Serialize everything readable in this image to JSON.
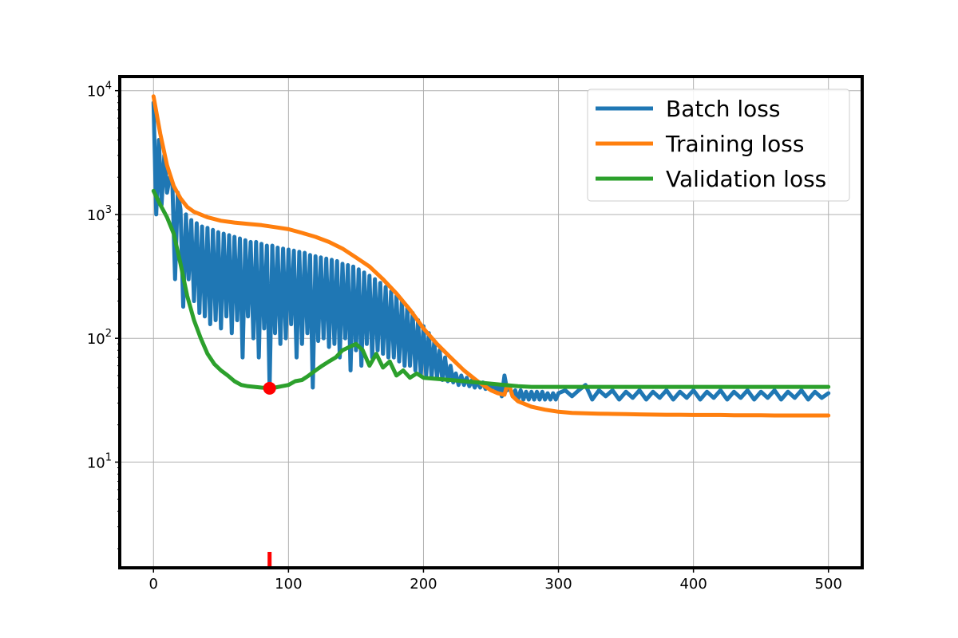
{
  "chart_data": {
    "type": "line",
    "title": "",
    "xlabel": "",
    "ylabel": "",
    "y_scale": "log",
    "xlim": [
      -25,
      525
    ],
    "ylim": [
      1.4,
      13000
    ],
    "grid": true,
    "legend_placement": "top-right",
    "x_ticks": [
      0,
      100,
      200,
      300,
      400,
      500
    ],
    "y_ticks": [
      {
        "value": 10,
        "base": "10",
        "exp": "1"
      },
      {
        "value": 100,
        "base": "10",
        "exp": "2"
      },
      {
        "value": 1000,
        "base": "10",
        "exp": "3"
      },
      {
        "value": 10000,
        "base": "10",
        "exp": "4"
      }
    ],
    "series": [
      {
        "name": "Batch loss",
        "color": "#1f77b4",
        "x": [
          0,
          2,
          4,
          6,
          8,
          10,
          12,
          14,
          16,
          18,
          20,
          22,
          24,
          26,
          28,
          30,
          32,
          34,
          36,
          38,
          40,
          42,
          44,
          46,
          48,
          50,
          52,
          54,
          56,
          58,
          60,
          62,
          64,
          66,
          68,
          70,
          72,
          74,
          76,
          78,
          80,
          82,
          84,
          86,
          88,
          90,
          92,
          94,
          96,
          98,
          100,
          102,
          104,
          106,
          108,
          110,
          112,
          114,
          116,
          118,
          120,
          122,
          124,
          126,
          128,
          130,
          132,
          134,
          136,
          138,
          140,
          142,
          144,
          146,
          148,
          150,
          152,
          154,
          156,
          158,
          160,
          162,
          164,
          166,
          168,
          170,
          172,
          174,
          176,
          178,
          180,
          182,
          184,
          186,
          188,
          190,
          192,
          194,
          196,
          198,
          200,
          202,
          204,
          206,
          208,
          210,
          212,
          214,
          216,
          218,
          220,
          222,
          224,
          226,
          228,
          230,
          232,
          234,
          236,
          238,
          240,
          242,
          244,
          246,
          248,
          250,
          252,
          254,
          256,
          258,
          260,
          262,
          264,
          266,
          268,
          270,
          272,
          274,
          276,
          278,
          280,
          282,
          284,
          286,
          288,
          290,
          292,
          294,
          296,
          298,
          300,
          305,
          310,
          315,
          320,
          325,
          330,
          335,
          340,
          345,
          350,
          355,
          360,
          365,
          370,
          375,
          380,
          385,
          390,
          395,
          400,
          405,
          410,
          415,
          420,
          425,
          430,
          435,
          440,
          445,
          450,
          455,
          460,
          465,
          470,
          475,
          480,
          485,
          490,
          495,
          500
        ],
        "y": [
          8000,
          1000,
          4000,
          1200,
          3000,
          1500,
          2000,
          1800,
          300,
          1500,
          1100,
          180,
          1000,
          300,
          900,
          200,
          850,
          160,
          800,
          150,
          780,
          130,
          750,
          140,
          720,
          120,
          700,
          150,
          680,
          110,
          660,
          140,
          640,
          70,
          620,
          150,
          600,
          100,
          600,
          70,
          580,
          120,
          560,
          40,
          560,
          110,
          540,
          90,
          530,
          100,
          520,
          130,
          510,
          70,
          500,
          90,
          490,
          110,
          470,
          40,
          460,
          95,
          450,
          100,
          440,
          85,
          430,
          90,
          420,
          70,
          400,
          100,
          390,
          55,
          380,
          80,
          360,
          60,
          340,
          90,
          320,
          70,
          300,
          80,
          280,
          75,
          260,
          70,
          240,
          70,
          220,
          65,
          200,
          60,
          180,
          60,
          160,
          55,
          140,
          50,
          125,
          50,
          110,
          48,
          95,
          48,
          80,
          46,
          70,
          45,
          60,
          44,
          52,
          42,
          50,
          42,
          48,
          41,
          46,
          40,
          45,
          40,
          44,
          39,
          43,
          39,
          42,
          38,
          41,
          34,
          50,
          38,
          40,
          34,
          38,
          32,
          38,
          32,
          37,
          32,
          37,
          32,
          37,
          32,
          37,
          32,
          36,
          32,
          36,
          32,
          36,
          38,
          34,
          38,
          42,
          32,
          38,
          34,
          38,
          32,
          37,
          33,
          38,
          32,
          37,
          33,
          38,
          32,
          37,
          33,
          38,
          32,
          37,
          33,
          38,
          32,
          37,
          33,
          38,
          32,
          37,
          33,
          38,
          32,
          37,
          33,
          38,
          32,
          37,
          33,
          36
        ]
      },
      {
        "name": "Training loss",
        "color": "#ff7f0e",
        "x": [
          0,
          5,
          10,
          15,
          20,
          25,
          30,
          40,
          50,
          60,
          70,
          80,
          90,
          100,
          110,
          120,
          130,
          140,
          150,
          160,
          170,
          180,
          190,
          200,
          210,
          220,
          230,
          240,
          250,
          255,
          260,
          262,
          264,
          266,
          270,
          280,
          290,
          300,
          310,
          320,
          330,
          340,
          350,
          360,
          370,
          380,
          390,
          400,
          410,
          420,
          430,
          440,
          450,
          460,
          470,
          480,
          490,
          500
        ],
        "y": [
          9000,
          4500,
          2500,
          1700,
          1350,
          1150,
          1050,
          950,
          890,
          860,
          840,
          820,
          790,
          760,
          710,
          660,
          600,
          530,
          450,
          380,
          300,
          230,
          170,
          120,
          90,
          70,
          55,
          45,
          38,
          36,
          35,
          42,
          40,
          34,
          31,
          28,
          26.5,
          25.5,
          25,
          24.8,
          24.6,
          24.5,
          24.4,
          24.3,
          24.2,
          24.1,
          24.1,
          24.0,
          24.0,
          24.0,
          23.9,
          23.9,
          23.9,
          23.8,
          23.8,
          23.8,
          23.8,
          23.8
        ]
      },
      {
        "name": "Validation loss",
        "color": "#2ca02c",
        "x": [
          0,
          5,
          10,
          15,
          20,
          25,
          30,
          35,
          40,
          45,
          50,
          55,
          60,
          65,
          70,
          75,
          80,
          86,
          90,
          95,
          100,
          105,
          110,
          115,
          120,
          125,
          130,
          135,
          140,
          145,
          150,
          155,
          160,
          165,
          170,
          175,
          180,
          185,
          190,
          195,
          200,
          210,
          220,
          230,
          240,
          250,
          260,
          270,
          280,
          300,
          320,
          340,
          360,
          380,
          400,
          420,
          440,
          460,
          480,
          500
        ],
        "y": [
          1550,
          1200,
          950,
          700,
          400,
          220,
          140,
          100,
          75,
          62,
          55,
          50,
          45,
          42,
          41,
          40.5,
          40,
          39.5,
          40,
          41,
          42,
          45,
          46,
          50,
          55,
          60,
          65,
          70,
          80,
          85,
          90,
          80,
          60,
          75,
          58,
          65,
          50,
          55,
          48,
          52,
          48,
          47,
          46,
          45,
          44,
          43,
          42,
          41,
          40.5,
          40.5,
          40.5,
          40.5,
          40.5,
          40.5,
          40.5,
          40.5,
          40.5,
          40.5,
          40.5,
          40.5
        ]
      }
    ],
    "best_marker": {
      "x": 86,
      "y": 39.5,
      "color": "#ff0000"
    }
  }
}
